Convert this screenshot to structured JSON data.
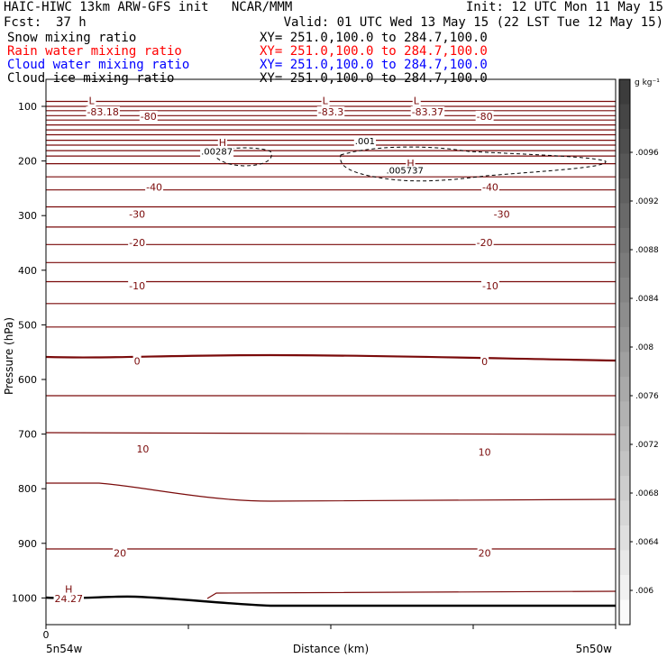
{
  "header": {
    "title": "HAIC-HIWC 13km ARW-GFS init   NCAR/MMM",
    "init": "Init: 12 UTC Mon 11 May 15",
    "fcst_label": "Fcst:",
    "fcst_value": "37 h",
    "valid": "Valid: 01 UTC Wed 13 May 15 (22 LST Tue 12 May 15)",
    "fields": [
      {
        "name": "Snow mixing ratio",
        "xy": "XY= 251.0,100.0 to 284.7,100.0",
        "color": "#000000"
      },
      {
        "name": "Rain water mixing ratio",
        "xy": "XY= 251.0,100.0 to 284.7,100.0",
        "color": "#ff0000"
      },
      {
        "name": "Cloud water mixing ratio",
        "xy": "XY= 251.0,100.0 to 284.7,100.0",
        "color": "#0000ff"
      },
      {
        "name": "Cloud ice mixing ratio",
        "xy": "XY= 251.0,100.0 to 284.7,100.0",
        "color": "#000000"
      }
    ]
  },
  "chart_data": {
    "type": "line",
    "title": "HAIC-HIWC 13km ARW-GFS init",
    "xlabel": "Distance (km)",
    "ylabel": "Pressure (hPa)",
    "x_tick_labels": {
      "left": "5n54w",
      "right": "5n50w",
      "origin": "0"
    },
    "y_ticks": [
      100,
      200,
      300,
      400,
      500,
      600,
      700,
      800,
      900,
      1000
    ],
    "ylim": [
      1050,
      50
    ],
    "isotherm_labels": [
      {
        "text": "-83.18",
        "p": 110,
        "x": 0.1
      },
      {
        "text": "-83.3",
        "p": 110,
        "x": 0.5
      },
      {
        "text": "-83.37",
        "p": 110,
        "x": 0.67
      },
      {
        "text": "-80",
        "p": 118,
        "x": 0.18
      },
      {
        "text": "-80",
        "p": 118,
        "x": 0.77
      },
      {
        "text": "-40",
        "p": 248,
        "x": 0.19
      },
      {
        "text": "-40",
        "p": 248,
        "x": 0.78
      },
      {
        "text": "-30",
        "p": 297,
        "x": 0.16
      },
      {
        "text": "-30",
        "p": 297,
        "x": 0.8
      },
      {
        "text": "-20",
        "p": 349,
        "x": 0.16
      },
      {
        "text": "-20",
        "p": 349,
        "x": 0.77
      },
      {
        "text": "-10",
        "p": 428,
        "x": 0.16
      },
      {
        "text": "-10",
        "p": 428,
        "x": 0.78
      },
      {
        "text": "0",
        "p": 566,
        "x": 0.16
      },
      {
        "text": "0",
        "p": 567,
        "x": 0.77
      },
      {
        "text": "10",
        "p": 727,
        "x": 0.17
      },
      {
        "text": "10",
        "p": 733,
        "x": 0.77
      },
      {
        "text": "20",
        "p": 918,
        "x": 0.13
      },
      {
        "text": "20",
        "p": 918,
        "x": 0.77
      },
      {
        "text": "24.27",
        "p": 1001,
        "x": 0.04
      }
    ],
    "extrema_labels": [
      {
        "text": "L",
        "p": 89,
        "x": 0.08
      },
      {
        "text": "L",
        "p": 89,
        "x": 0.49
      },
      {
        "text": "L",
        "p": 89,
        "x": 0.65
      },
      {
        "text": "H",
        "p": 166,
        "x": 0.31
      },
      {
        "text": "H",
        "p": 204,
        "x": 0.64
      },
      {
        "text": "H",
        "p": 984,
        "x": 0.04
      }
    ],
    "moisture_labels": [
      {
        "text": ".00287",
        "p": 182,
        "x": 0.3
      },
      {
        "text": ".001",
        "p": 163,
        "x": 0.56
      },
      {
        "text": ".005737",
        "p": 216,
        "x": 0.63
      }
    ],
    "colorbar": {
      "unit": "g kg⁻¹",
      "labels": [
        ".0096",
        ".0092",
        ".0088",
        ".0084",
        ".008",
        ".0076",
        ".0072",
        ".0068",
        ".0064",
        ".006"
      ]
    }
  }
}
